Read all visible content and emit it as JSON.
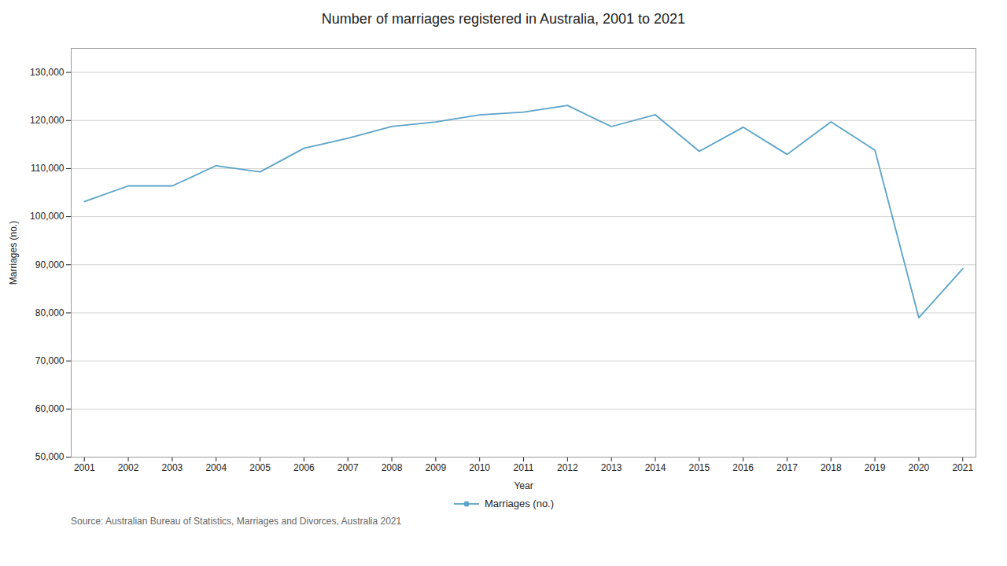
{
  "chart_data": {
    "type": "line",
    "title": "Number of marriages registered in Australia, 2001 to 2021",
    "xlabel": "Year",
    "ylabel": "Marriages (no.)",
    "source": "Source: Australian Bureau of Statistics, Marriages and Divorces, Australia 2021",
    "x": [
      2001,
      2002,
      2003,
      2004,
      2005,
      2006,
      2007,
      2008,
      2009,
      2010,
      2011,
      2012,
      2013,
      2014,
      2015,
      2016,
      2017,
      2018,
      2019,
      2020,
      2021
    ],
    "series": [
      {
        "name": "Marriages (no.)",
        "color": "#5ba3c9",
        "values": [
          103130,
          106394,
          106394,
          110598,
          109323,
          114222,
          116322,
          118756,
          119691,
          121176,
          121752,
          123138,
          118735,
          121197,
          113595,
          118597,
          112954,
          119711,
          113815,
          78989,
          89164
        ]
      }
    ],
    "xlim": [
      2000.7,
      2021.3
    ],
    "xticks": [
      2001,
      2002,
      2003,
      2004,
      2005,
      2006,
      2007,
      2008,
      2009,
      2010,
      2011,
      2012,
      2013,
      2014,
      2015,
      2016,
      2017,
      2018,
      2019,
      2020,
      2021
    ],
    "ylim": [
      50000,
      135000
    ],
    "yticks": [
      {
        "value": 50000,
        "label": "50,000"
      },
      {
        "value": 60000,
        "label": "60,000"
      },
      {
        "value": 70000,
        "label": "70,000"
      },
      {
        "value": 80000,
        "label": "80,000"
      },
      {
        "value": 90000,
        "label": "90,000"
      },
      {
        "value": 100000,
        "label": "100,000"
      },
      {
        "value": 110000,
        "label": "110,000"
      },
      {
        "value": 120000,
        "label": "120,000"
      },
      {
        "value": 130000,
        "label": "130,000"
      }
    ],
    "grid": true,
    "legend": "bottom"
  }
}
